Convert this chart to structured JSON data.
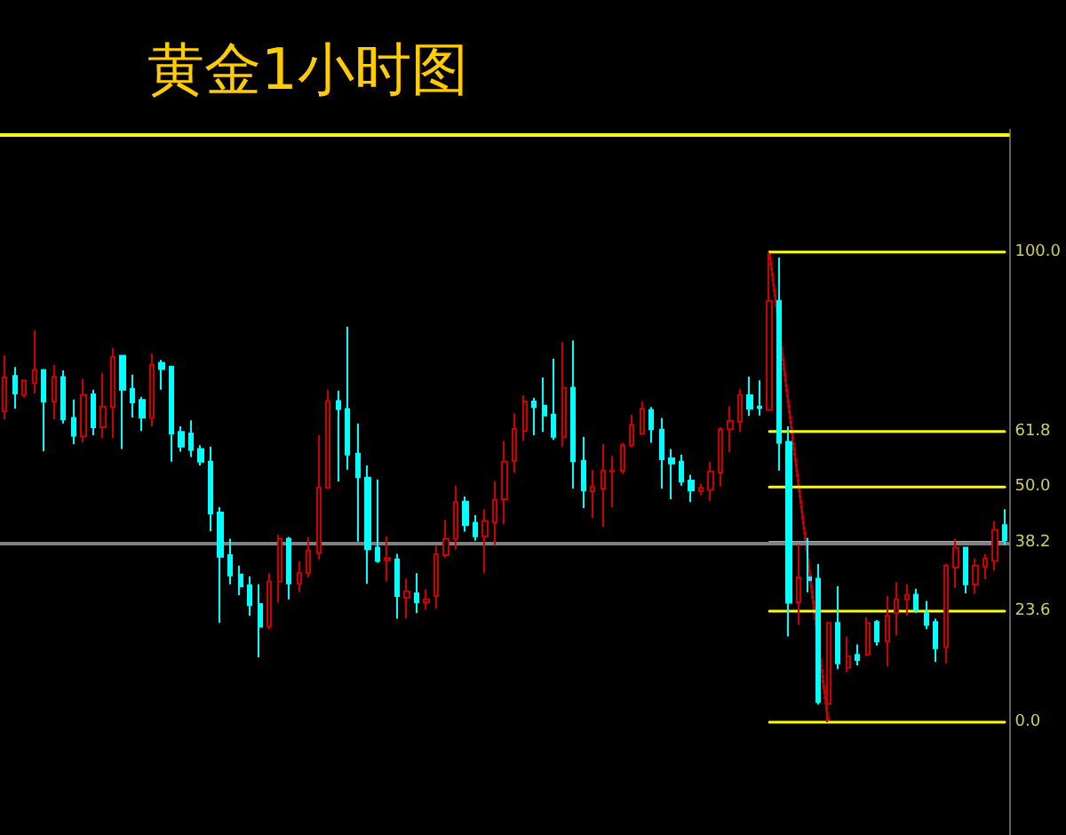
{
  "chart_data": {
    "type": "candlestick",
    "title": "黄金1小时图",
    "tick_labels": "y",
    "marker": "none",
    "ylim": [
      -24,
      126
    ],
    "yticks": [
      {
        "value": 0,
        "label": "0.0"
      },
      {
        "value": 23.6,
        "label": "23.6"
      },
      {
        "value": 38.2,
        "label": "38.2"
      },
      {
        "value": 50,
        "label": "50.0"
      },
      {
        "value": 61.8,
        "label": "61.8"
      },
      {
        "value": 100,
        "label": "100.0"
      }
    ],
    "categories": [
      null,
      null,
      null,
      null,
      null,
      null,
      null,
      null,
      null,
      null,
      null,
      null,
      null,
      null,
      null,
      null,
      null,
      null,
      null,
      null,
      null,
      null,
      null,
      null,
      null,
      null,
      null,
      null,
      null,
      null,
      null,
      null,
      null,
      null,
      null,
      null,
      null,
      null,
      null,
      null,
      null,
      null,
      null,
      null,
      null,
      null,
      null,
      null,
      null,
      null,
      null,
      null,
      null,
      null,
      null,
      null,
      null,
      null,
      null,
      null,
      null,
      null,
      null,
      null,
      null,
      null,
      null,
      null,
      null,
      null,
      null,
      null,
      null,
      null,
      null,
      null,
      null,
      null,
      null,
      null,
      null,
      null,
      null,
      null,
      null,
      null,
      null,
      null,
      null,
      null,
      null,
      null,
      null,
      null,
      null,
      null,
      null,
      null,
      null,
      null,
      null,
      null,
      null
    ],
    "ref_lines": [
      {
        "axis": "y",
        "value": 125,
        "color": "#ffff00"
      },
      {
        "axis": "y",
        "value": 38,
        "color": "#808080"
      }
    ],
    "series": [
      {
        "type": "candlestick",
        "ohlc": [
          [
            66.1,
            78.0,
            64.4,
            73.3
          ],
          [
            73.6,
            75.5,
            66.7,
            69.9
          ],
          [
            69.6,
            72.7,
            69.0,
            72.7
          ],
          [
            72.1,
            83.3,
            69.9,
            74.9
          ],
          [
            74.9,
            75.0,
            57.6,
            68.2
          ],
          [
            68.2,
            76.0,
            64.4,
            73.5
          ],
          [
            73.4,
            74.8,
            63.5,
            64.4
          ],
          [
            64.7,
            68.6,
            59.1,
            60.9
          ],
          [
            60.8,
            73.0,
            59.5,
            69.6
          ],
          [
            69.7,
            70.7,
            61.0,
            62.7
          ],
          [
            62.7,
            74.3,
            60.4,
            67.1
          ],
          [
            67.0,
            79.6,
            60.4,
            77.7
          ],
          [
            77.9,
            78.0,
            58.1,
            70.7
          ],
          [
            70.9,
            73.9,
            64.8,
            68.0
          ],
          [
            68.5,
            69.2,
            61.9,
            64.8
          ],
          [
            64.7,
            78.4,
            62.9,
            76.0
          ],
          [
            76.4,
            77.0,
            70.7,
            75.1
          ],
          [
            75.6,
            75.8,
            55.4,
            61.4
          ],
          [
            61.7,
            62.9,
            57.5,
            58.6
          ],
          [
            61.4,
            64.2,
            56.4,
            57.9
          ],
          [
            58.1,
            58.9,
            54.6,
            55.4
          ],
          [
            55.4,
            58.6,
            40.6,
            44.4
          ],
          [
            44.6,
            45.7,
            21.1,
            35.2
          ],
          [
            35.5,
            39.0,
            29.3,
            31.2
          ],
          [
            31.4,
            33.3,
            27.0,
            28.9
          ],
          [
            29.1,
            31.0,
            22.6,
            24.9
          ],
          [
            25.1,
            29.3,
            13.8,
            20.3
          ],
          [
            20.3,
            31.7,
            19.8,
            29.9
          ],
          [
            29.9,
            39.9,
            25.4,
            39.0
          ],
          [
            39.0,
            39.4,
            26.1,
            29.5
          ],
          [
            29.4,
            34.2,
            27.6,
            31.8
          ],
          [
            31.7,
            39.4,
            30.8,
            36.5
          ],
          [
            36.0,
            61.0,
            34.6,
            49.9
          ],
          [
            49.8,
            70.7,
            49.8,
            68.3
          ],
          [
            68.3,
            70.5,
            51.2,
            66.6
          ],
          [
            66.6,
            84.1,
            53.7,
            56.9
          ],
          [
            57.1,
            63.5,
            38.4,
            52.1
          ],
          [
            52.0,
            54.6,
            29.4,
            36.8
          ],
          [
            37.1,
            51.6,
            33.9,
            34.3
          ],
          [
            34.4,
            39.5,
            29.9,
            34.9
          ],
          [
            34.6,
            35.8,
            22.0,
            26.8
          ],
          [
            26.5,
            30.5,
            22.0,
            27.8
          ],
          [
            27.4,
            31.7,
            23.2,
            25.5
          ],
          [
            25.5,
            28.3,
            23.9,
            26.1
          ],
          [
            26.8,
            37.5,
            24.1,
            35.7
          ],
          [
            35.5,
            43.0,
            34.9,
            39.0
          ],
          [
            39.0,
            50.3,
            36.7,
            46.8
          ],
          [
            46.9,
            48.0,
            40.5,
            41.9
          ],
          [
            42.4,
            44.0,
            38.6,
            39.5
          ],
          [
            39.5,
            45.3,
            31.7,
            42.8
          ],
          [
            42.5,
            51.3,
            37.7,
            47.3
          ],
          [
            47.4,
            59.8,
            42.1,
            55.4
          ],
          [
            55.6,
            65.7,
            53.1,
            62.4
          ],
          [
            61.9,
            69.5,
            59.8,
            68.2
          ],
          [
            68.2,
            69.0,
            61.0,
            67.0
          ],
          [
            67.3,
            73.3,
            61.7,
            65.2
          ],
          [
            65.4,
            77.3,
            60.0,
            60.7
          ],
          [
            60.7,
            80.8,
            58.5,
            71.1
          ],
          [
            71.1,
            81.2,
            49.7,
            55.5
          ],
          [
            55.6,
            60.7,
            45.5,
            49.3
          ],
          [
            49.1,
            53.6,
            43.4,
            50.1
          ],
          [
            49.7,
            59.1,
            41.5,
            53.5
          ],
          [
            53.3,
            56.6,
            45.7,
            53.5
          ],
          [
            53.5,
            59.4,
            52.8,
            58.9
          ],
          [
            58.9,
            65.4,
            58.4,
            63.2
          ],
          [
            61.3,
            68.3,
            61.3,
            66.7
          ],
          [
            66.4,
            67.0,
            59.4,
            62.3
          ],
          [
            62.2,
            64.7,
            49.7,
            55.9
          ],
          [
            56.1,
            58.1,
            47.4,
            55.0
          ],
          [
            55.4,
            56.9,
            50.3,
            51.2
          ],
          [
            51.4,
            52.6,
            46.8,
            49.3
          ],
          [
            49.1,
            50.7,
            48.3,
            49.8
          ],
          [
            49.4,
            55.4,
            47.0,
            53.3
          ],
          [
            53.1,
            62.7,
            50.1,
            62.3
          ],
          [
            62.3,
            67.2,
            57.4,
            64.1
          ],
          [
            63.9,
            70.9,
            61.7,
            69.6
          ],
          [
            69.5,
            73.5,
            65.1,
            66.7
          ],
          [
            67.1,
            72.7,
            65.2,
            66.8
          ],
          [
            66.4,
            100.0,
            66.4,
            89.6
          ],
          [
            89.6,
            98.8,
            53.5,
            59.4
          ],
          [
            59.6,
            62.9,
            18.2,
            25.4
          ],
          [
            25.5,
            37.7,
            20.7,
            30.8
          ],
          [
            30.8,
            39.2,
            27.6,
            30.2
          ],
          [
            30.5,
            33.6,
            3.7,
            4.3
          ],
          [
            3.9,
            21.3,
            0.0,
            21.1
          ],
          [
            21.1,
            28.9,
            11.3,
            12.5
          ],
          [
            11.6,
            18.2,
            10.6,
            14.0
          ],
          [
            14.3,
            16.5,
            12.1,
            13.2
          ],
          [
            14.4,
            22.3,
            14.0,
            21.1
          ],
          [
            21.3,
            21.7,
            16.3,
            17.2
          ],
          [
            17.2,
            26.8,
            11.9,
            22.6
          ],
          [
            23.2,
            29.8,
            18.4,
            26.1
          ],
          [
            26.1,
            29.3,
            22.6,
            27.1
          ],
          [
            27.1,
            28.4,
            23.2,
            23.9
          ],
          [
            23.2,
            25.8,
            19.8,
            20.7
          ],
          [
            21.3,
            22.0,
            12.8,
            15.7
          ],
          [
            16.0,
            33.7,
            12.5,
            33.3
          ],
          [
            32.9,
            39.0,
            28.5,
            37.1
          ],
          [
            37.1,
            37.1,
            27.4,
            29.3
          ],
          [
            29.3,
            34.8,
            27.3,
            33.3
          ],
          [
            33.1,
            35.8,
            30.4,
            34.8
          ],
          [
            34.3,
            42.8,
            32.3,
            40.9
          ],
          [
            41.9,
            45.3,
            37.7,
            38.7
          ]
        ],
        "colors": [
          "#cc0000",
          "#00ffff",
          "#cc0000",
          "#cc0000",
          "#00ffff",
          "#cc0000",
          "#00ffff",
          "#00ffff",
          "#cc0000",
          "#00ffff",
          "#cc0000",
          "#cc0000",
          "#00ffff",
          "#00ffff",
          "#00ffff",
          "#cc0000",
          "#00ffff",
          "#00ffff",
          "#00ffff",
          "#00ffff",
          "#00ffff",
          "#00ffff",
          "#00ffff",
          "#00ffff",
          "#00ffff",
          "#00ffff",
          "#00ffff",
          "#cc0000",
          "#cc0000",
          "#00ffff",
          "#cc0000",
          "#cc0000",
          "#cc0000",
          "#cc0000",
          "#00ffff",
          "#00ffff",
          "#00ffff",
          "#00ffff",
          "#00ffff",
          "#cc0000",
          "#00ffff",
          "#cc0000",
          "#00ffff",
          "#cc0000",
          "#cc0000",
          "#cc0000",
          "#cc0000",
          "#00ffff",
          "#00ffff",
          "#cc0000",
          "#cc0000",
          "#cc0000",
          "#cc0000",
          "#cc0000",
          "#00ffff",
          "#00ffff",
          "#00ffff",
          "#cc0000",
          "#00ffff",
          "#00ffff",
          "#cc0000",
          "#cc0000",
          "#cc0000",
          "#cc0000",
          "#cc0000",
          "#cc0000",
          "#00ffff",
          "#00ffff",
          "#00ffff",
          "#00ffff",
          "#00ffff",
          "#cc0000",
          "#cc0000",
          "#cc0000",
          "#cc0000",
          "#cc0000",
          "#00ffff",
          "#00ffff",
          "#cc0000",
          "#00ffff",
          "#00ffff",
          "#cc0000",
          "#00ffff",
          "#00ffff",
          "#cc0000",
          "#00ffff",
          "#cc0000",
          "#00ffff",
          "#cc0000",
          "#00ffff",
          "#cc0000",
          "#cc0000",
          "#cc0000",
          "#00ffff",
          "#00ffff",
          "#00ffff",
          "#cc0000",
          "#cc0000",
          "#00ffff",
          "#cc0000",
          "#cc0000",
          "#cc0000",
          "#00ffff"
        ]
      },
      {
        "type": "line",
        "color": "#cc0000",
        "line_style": "dotted",
        "values": [
          null,
          null,
          null,
          null,
          null,
          null,
          null,
          null,
          null,
          null,
          null,
          null,
          null,
          null,
          null,
          null,
          null,
          null,
          null,
          null,
          null,
          null,
          null,
          null,
          null,
          null,
          null,
          null,
          null,
          null,
          null,
          null,
          null,
          null,
          null,
          null,
          null,
          null,
          null,
          null,
          null,
          null,
          null,
          null,
          null,
          null,
          null,
          null,
          null,
          null,
          null,
          null,
          null,
          null,
          null,
          null,
          null,
          null,
          null,
          null,
          null,
          null,
          null,
          null,
          null,
          null,
          null,
          null,
          null,
          null,
          null,
          null,
          null,
          null,
          null,
          null,
          null,
          null,
          100,
          null,
          null,
          null,
          null,
          null,
          0,
          null,
          null,
          null,
          null,
          null,
          null,
          null,
          null,
          null,
          null,
          null,
          null,
          null,
          null,
          null,
          null,
          null,
          null
        ]
      },
      {
        "type": "line",
        "color": "#ffff00",
        "line_style": "solid",
        "values": [
          null,
          null,
          null,
          null,
          null,
          null,
          null,
          null,
          null,
          null,
          null,
          null,
          null,
          null,
          null,
          null,
          null,
          null,
          null,
          null,
          null,
          null,
          null,
          null,
          null,
          null,
          null,
          null,
          null,
          null,
          null,
          null,
          null,
          null,
          null,
          null,
          null,
          null,
          null,
          null,
          null,
          null,
          null,
          null,
          null,
          null,
          null,
          null,
          null,
          null,
          null,
          null,
          null,
          null,
          null,
          null,
          null,
          null,
          null,
          null,
          null,
          null,
          null,
          null,
          null,
          null,
          null,
          null,
          null,
          null,
          null,
          null,
          null,
          null,
          null,
          null,
          null,
          null,
          100,
          100,
          100,
          100,
          100,
          100,
          100,
          100,
          100,
          100,
          100,
          100,
          100,
          100,
          100,
          100,
          100,
          100,
          100,
          100,
          100,
          100,
          100,
          100,
          100
        ]
      },
      {
        "type": "line",
        "color": "#ffff00",
        "line_style": "solid",
        "values": [
          null,
          null,
          null,
          null,
          null,
          null,
          null,
          null,
          null,
          null,
          null,
          null,
          null,
          null,
          null,
          null,
          null,
          null,
          null,
          null,
          null,
          null,
          null,
          null,
          null,
          null,
          null,
          null,
          null,
          null,
          null,
          null,
          null,
          null,
          null,
          null,
          null,
          null,
          null,
          null,
          null,
          null,
          null,
          null,
          null,
          null,
          null,
          null,
          null,
          null,
          null,
          null,
          null,
          null,
          null,
          null,
          null,
          null,
          null,
          null,
          null,
          null,
          null,
          null,
          null,
          null,
          null,
          null,
          null,
          null,
          null,
          null,
          null,
          null,
          null,
          null,
          null,
          null,
          61.8,
          61.8,
          61.8,
          61.8,
          61.8,
          61.8,
          61.8,
          61.8,
          61.8,
          61.8,
          61.8,
          61.8,
          61.8,
          61.8,
          61.8,
          61.8,
          61.8,
          61.8,
          61.8,
          61.8,
          61.8,
          61.8,
          61.8,
          61.8,
          61.8
        ]
      },
      {
        "type": "line",
        "color": "#ffff00",
        "line_style": "solid",
        "values": [
          null,
          null,
          null,
          null,
          null,
          null,
          null,
          null,
          null,
          null,
          null,
          null,
          null,
          null,
          null,
          null,
          null,
          null,
          null,
          null,
          null,
          null,
          null,
          null,
          null,
          null,
          null,
          null,
          null,
          null,
          null,
          null,
          null,
          null,
          null,
          null,
          null,
          null,
          null,
          null,
          null,
          null,
          null,
          null,
          null,
          null,
          null,
          null,
          null,
          null,
          null,
          null,
          null,
          null,
          null,
          null,
          null,
          null,
          null,
          null,
          null,
          null,
          null,
          null,
          null,
          null,
          null,
          null,
          null,
          null,
          null,
          null,
          null,
          null,
          null,
          null,
          null,
          null,
          50,
          50,
          50,
          50,
          50,
          50,
          50,
          50,
          50,
          50,
          50,
          50,
          50,
          50,
          50,
          50,
          50,
          50,
          50,
          50,
          50,
          50,
          50,
          50,
          50
        ]
      },
      {
        "type": "line",
        "color": "#ffff00",
        "line_style": "solid",
        "values": [
          null,
          null,
          null,
          null,
          null,
          null,
          null,
          null,
          null,
          null,
          null,
          null,
          null,
          null,
          null,
          null,
          null,
          null,
          null,
          null,
          null,
          null,
          null,
          null,
          null,
          null,
          null,
          null,
          null,
          null,
          null,
          null,
          null,
          null,
          null,
          null,
          null,
          null,
          null,
          null,
          null,
          null,
          null,
          null,
          null,
          null,
          null,
          null,
          null,
          null,
          null,
          null,
          null,
          null,
          null,
          null,
          null,
          null,
          null,
          null,
          null,
          null,
          null,
          null,
          null,
          null,
          null,
          null,
          null,
          null,
          null,
          null,
          null,
          null,
          null,
          null,
          null,
          null,
          38.2,
          38.2,
          38.2,
          38.2,
          38.2,
          38.2,
          38.2,
          38.2,
          38.2,
          38.2,
          38.2,
          38.2,
          38.2,
          38.2,
          38.2,
          38.2,
          38.2,
          38.2,
          38.2,
          38.2,
          38.2,
          38.2,
          38.2,
          38.2,
          38.2
        ]
      },
      {
        "type": "line",
        "color": "#ffff00",
        "line_style": "solid",
        "values": [
          null,
          null,
          null,
          null,
          null,
          null,
          null,
          null,
          null,
          null,
          null,
          null,
          null,
          null,
          null,
          null,
          null,
          null,
          null,
          null,
          null,
          null,
          null,
          null,
          null,
          null,
          null,
          null,
          null,
          null,
          null,
          null,
          null,
          null,
          null,
          null,
          null,
          null,
          null,
          null,
          null,
          null,
          null,
          null,
          null,
          null,
          null,
          null,
          null,
          null,
          null,
          null,
          null,
          null,
          null,
          null,
          null,
          null,
          null,
          null,
          null,
          null,
          null,
          null,
          null,
          null,
          null,
          null,
          null,
          null,
          null,
          null,
          null,
          null,
          null,
          null,
          null,
          null,
          23.6,
          23.6,
          23.6,
          23.6,
          23.6,
          23.6,
          23.6,
          23.6,
          23.6,
          23.6,
          23.6,
          23.6,
          23.6,
          23.6,
          23.6,
          23.6,
          23.6,
          23.6,
          23.6,
          23.6,
          23.6,
          23.6,
          23.6,
          23.6,
          23.6
        ]
      },
      {
        "type": "line",
        "color": "#ffff00",
        "line_style": "solid",
        "values": [
          null,
          null,
          null,
          null,
          null,
          null,
          null,
          null,
          null,
          null,
          null,
          null,
          null,
          null,
          null,
          null,
          null,
          null,
          null,
          null,
          null,
          null,
          null,
          null,
          null,
          null,
          null,
          null,
          null,
          null,
          null,
          null,
          null,
          null,
          null,
          null,
          null,
          null,
          null,
          null,
          null,
          null,
          null,
          null,
          null,
          null,
          null,
          null,
          null,
          null,
          null,
          null,
          null,
          null,
          null,
          null,
          null,
          null,
          null,
          null,
          null,
          null,
          null,
          null,
          null,
          null,
          null,
          null,
          null,
          null,
          null,
          null,
          null,
          null,
          null,
          null,
          null,
          null,
          0,
          0,
          0,
          0,
          0,
          0,
          0,
          0,
          0,
          0,
          0,
          0,
          0,
          0,
          0,
          0,
          0,
          0,
          0,
          0,
          0,
          0,
          0,
          0,
          0
        ]
      }
    ]
  }
}
